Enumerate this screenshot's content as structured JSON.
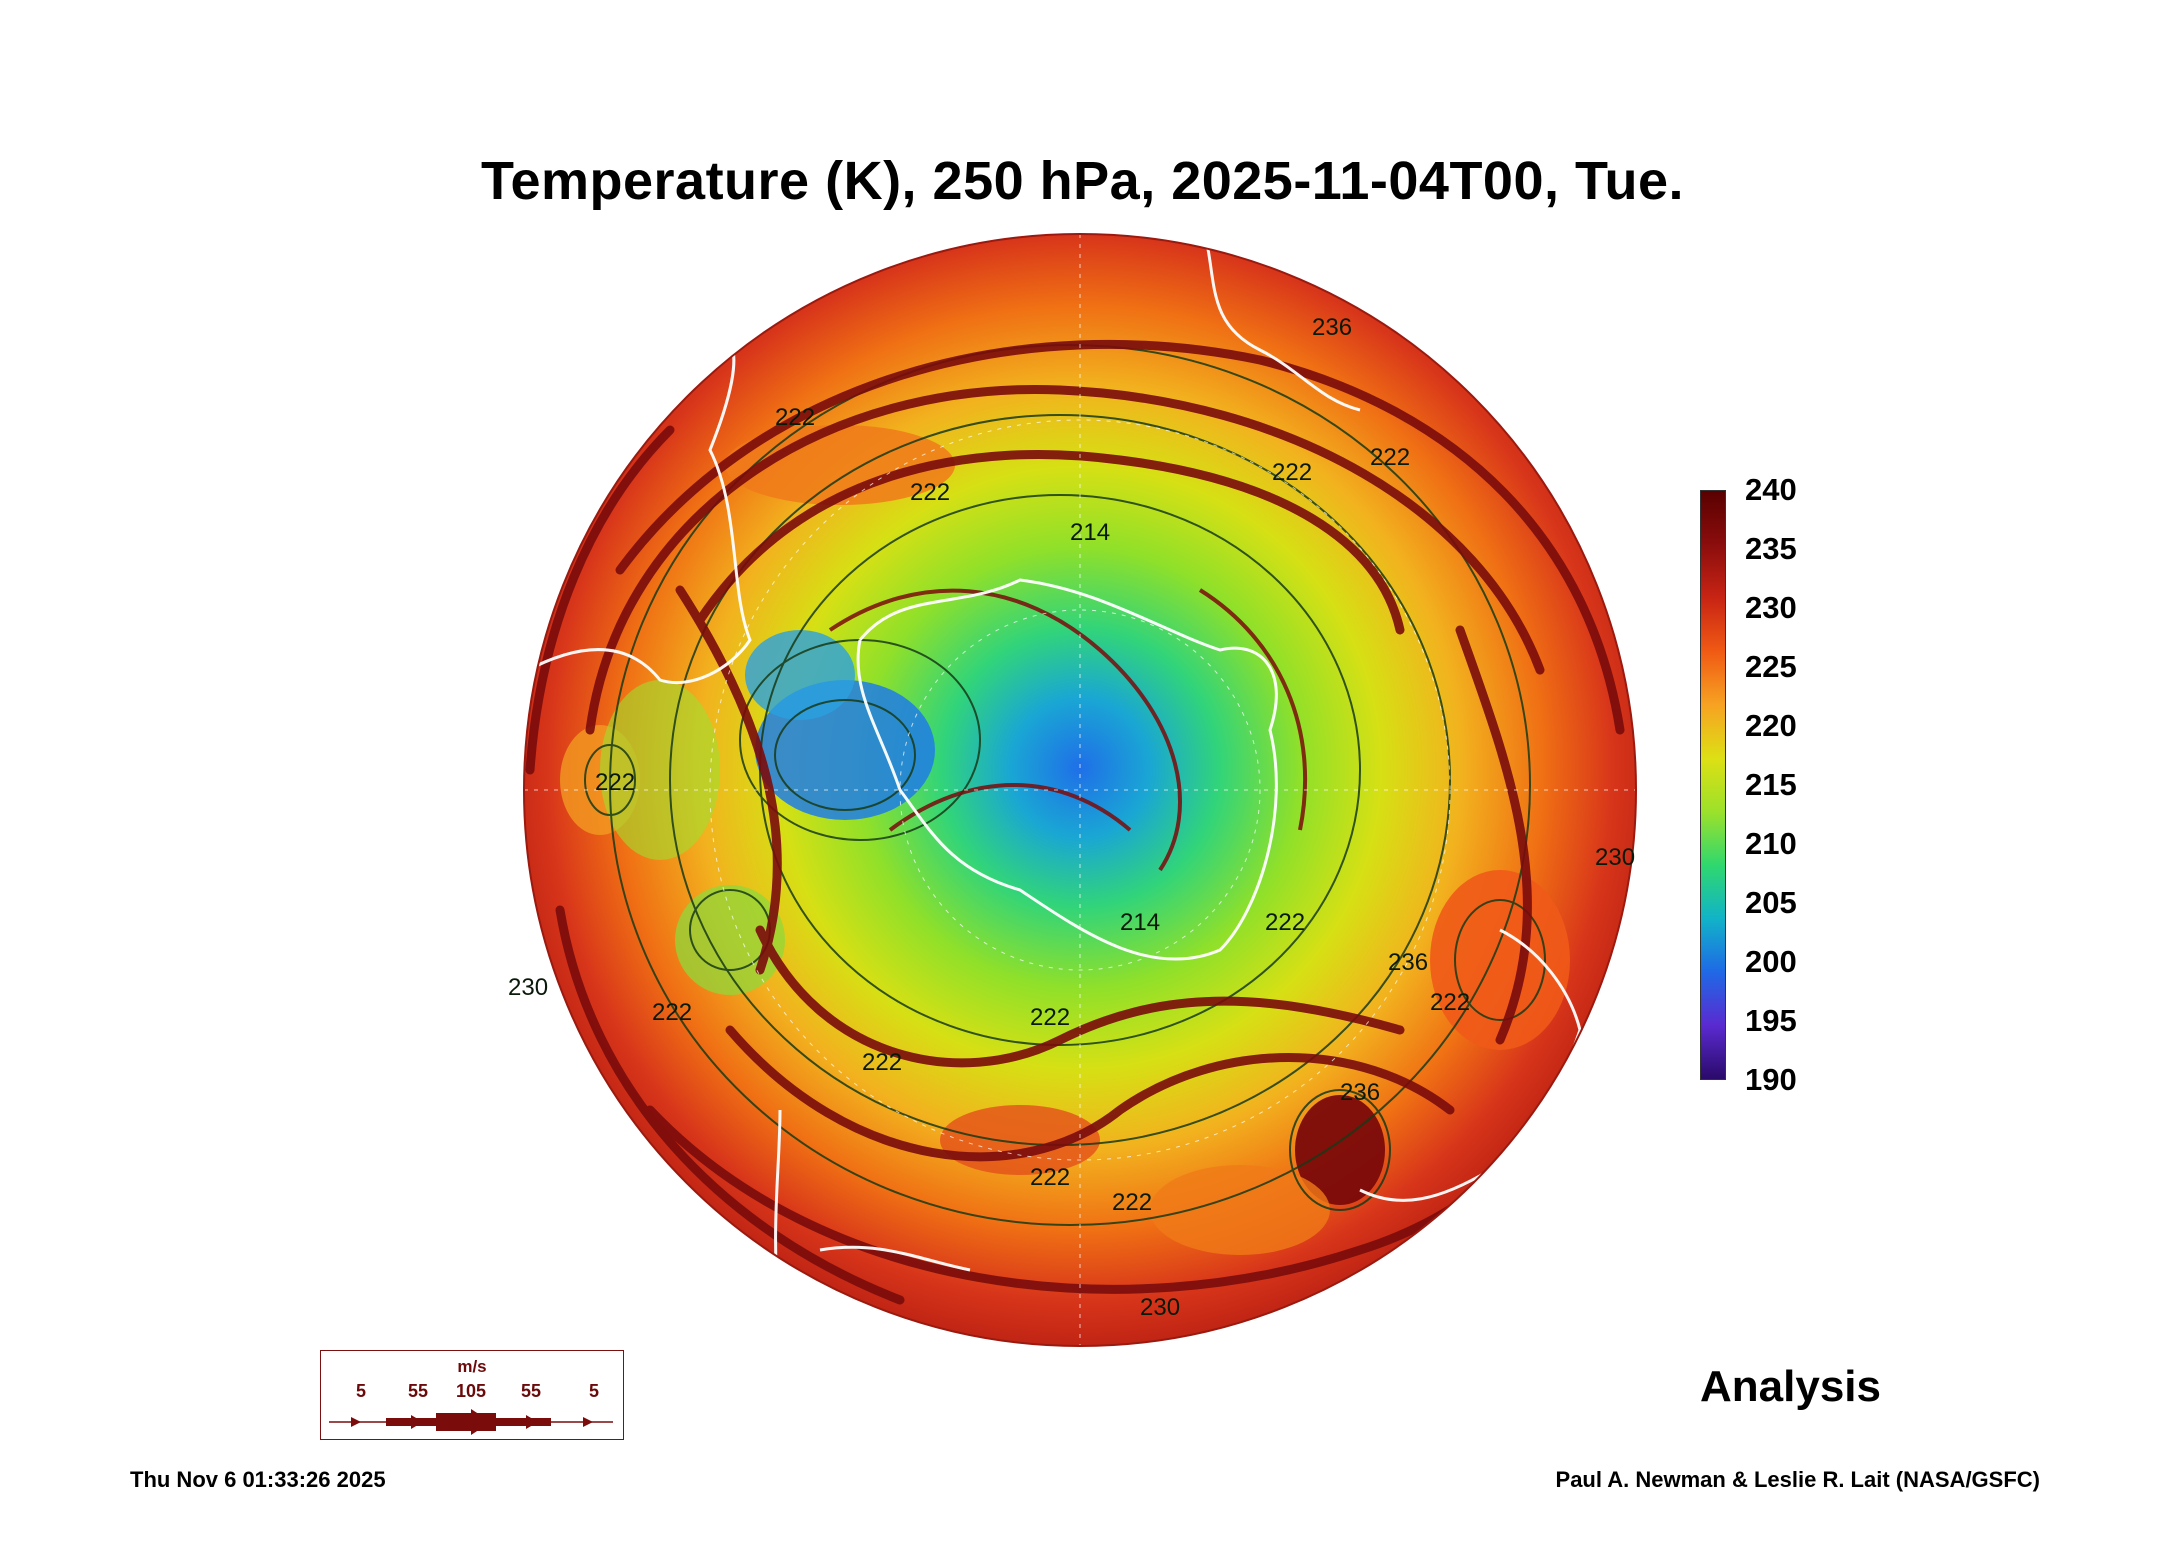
{
  "title": "Temperature (K), 250 hPa, 2025-11-04T00, Tue.",
  "colorbar": {
    "labels": [
      "240",
      "235",
      "230",
      "225",
      "220",
      "215",
      "210",
      "205",
      "200",
      "195",
      "190"
    ],
    "stops": [
      "#5a0000",
      "#8b0d0d",
      "#c82414",
      "#f05a14",
      "#f7a222",
      "#dde014",
      "#9ce12a",
      "#2fd86e",
      "#11b3c8",
      "#1f69e6",
      "#5a2ad0",
      "#2a0a6a"
    ]
  },
  "contour_labels": [
    "236",
    "222",
    "222",
    "222",
    "214",
    "222",
    "222",
    "222",
    "222",
    "214",
    "222",
    "236",
    "222",
    "222",
    "222",
    "222",
    "230",
    "230",
    "236",
    "230"
  ],
  "wind_legend": {
    "unit": "m/s",
    "speeds": [
      "5",
      "55",
      "105",
      "55",
      "5"
    ]
  },
  "analysis_label": "Analysis",
  "footer": {
    "timestamp": "Thu Nov  6 01:33:26 2025",
    "credit": "Paul A. Newman & Leslie R. Lait (NASA/GSFC)"
  },
  "colors": {
    "wind": "#7a0c0c",
    "contour": "#1a3a1a",
    "coast": "#ffffff"
  }
}
